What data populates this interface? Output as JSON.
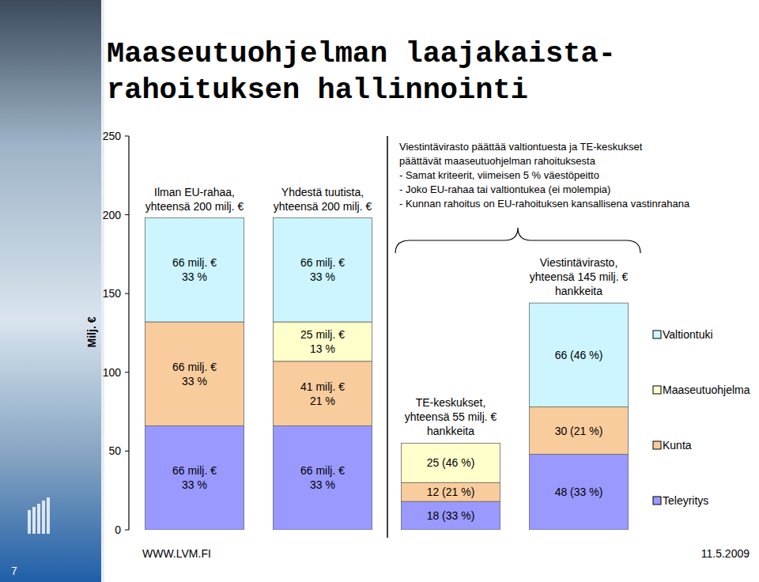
{
  "chart_data": {
    "type": "bar",
    "stacked": true,
    "data_labels": true,
    "title": "Maaseutuohjelman laajakaista-\nrahoituksen hallinnointi",
    "y_label": "Milj. €",
    "categories": [
      "Ilman EU-rahaa,\nyhteensä 200 milj. €",
      "Yhdestä tuutista,\nyhteensä 200 milj. €",
      "TE-keskukset,\nyhteensä 55 milj. €\nhankkeita",
      "Viestintävirasto,\nyhteensä 145 milj. €\nhankkeita"
    ],
    "series": [
      {
        "name": "Teleyritys",
        "color": "#9999ff",
        "values": [
          66,
          66,
          18,
          48
        ],
        "value_labels": [
          "66 milj. €\n33 %",
          "66 milj. €\n33 %",
          "18 (33 %)",
          "48 (33 %)"
        ]
      },
      {
        "name": "Kunta",
        "color": "#f9cc9d",
        "values": [
          66,
          41,
          12,
          30
        ],
        "value_labels": [
          "66 milj. €\n33 %",
          "41 milj. €\n21 %",
          "12 (21 %)",
          "30 (21 %)"
        ]
      },
      {
        "name": "Maaseutuohjelma",
        "color": "#ffffcc",
        "values": [
          null,
          25,
          25,
          null
        ],
        "value_labels": [
          null,
          "25 milj. €\n13 %",
          "25 (46 %)",
          null
        ]
      },
      {
        "name": "Valtiontuki",
        "color": "#ccf5ff",
        "values": [
          66,
          66,
          null,
          66
        ],
        "value_labels": [
          "66 milj. €\n33 %",
          "66 milj. €\n33 %",
          null,
          "66 (46 %)"
        ]
      }
    ],
    "ylim": [
      0,
      250
    ],
    "yticks": [
      0,
      50,
      100,
      150,
      200,
      250
    ],
    "grid": false,
    "legend": "right",
    "annotation": [
      "Viestintävirasto päättää valtiontuesta ja TE-keskukset",
      "päättävät maaseutuohjelman rahoituksesta",
      "- Samat kriteerit, viimeisen 5 % väestöpeitto",
      "- Joko EU-rahaa tai valtiontukea (ei molempia)",
      "- Kunnan rahoitus on EU-rahoituksen kansallisena vastinrahana"
    ]
  },
  "footer": {
    "url": "WWW.LVM.FI",
    "date": "11.5.2009",
    "page": "7"
  }
}
